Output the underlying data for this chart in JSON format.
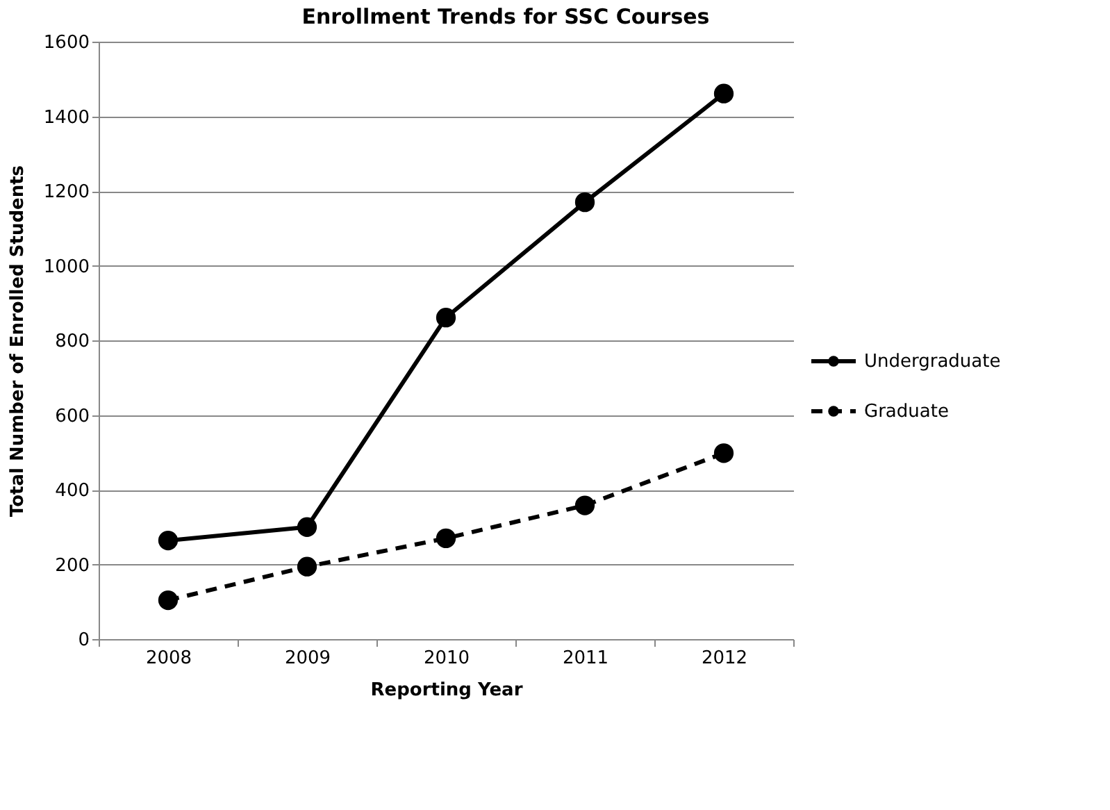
{
  "chart_data": {
    "type": "line",
    "title": "Enrollment Trends for SSC Courses",
    "xlabel": "Reporting Year",
    "ylabel": "Total Number of Enrolled Students",
    "categories": [
      "2008",
      "2009",
      "2010",
      "2011",
      "2012"
    ],
    "series": [
      {
        "name": "Undergraduate",
        "color": "#000000",
        "line_style": "solid",
        "values": [
          264,
          300,
          861,
          1170,
          1461
        ]
      },
      {
        "name": "Graduate",
        "color": "#000000",
        "line_style": "dashed",
        "values": [
          104,
          194,
          270,
          358,
          498
        ]
      }
    ],
    "ylim": [
      0,
      1600
    ],
    "yticks": [
      0,
      200,
      400,
      600,
      800,
      1000,
      1200,
      1400,
      1600
    ],
    "grid": "y",
    "legend": "right",
    "marker": "circle"
  }
}
